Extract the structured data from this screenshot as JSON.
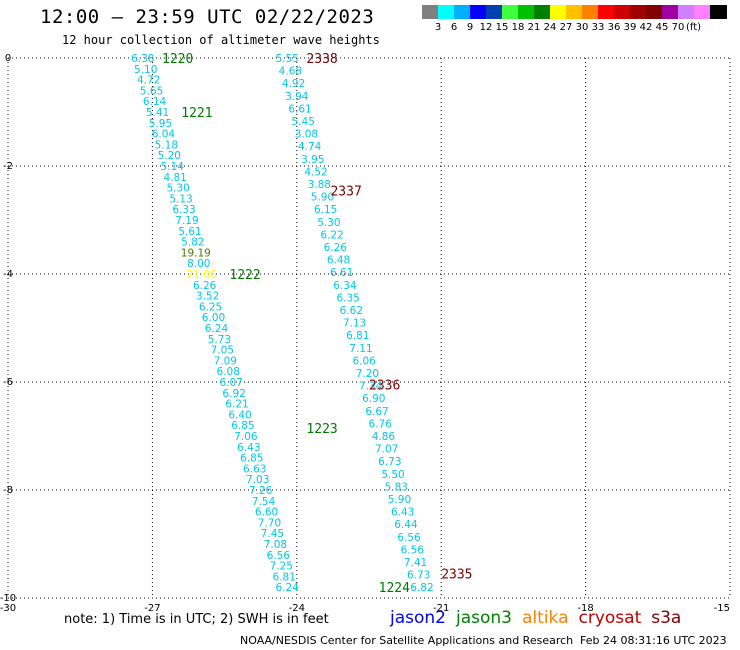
{
  "header": {
    "title": "12:00 — 23:59 UTC 02/22/2023",
    "subtitle": "12 hour collection of altimeter wave heights"
  },
  "legend": {
    "colors": [
      "#808080",
      "#00ffff",
      "#00b0ff",
      "#0000ff",
      "#0040b0",
      "#40ff40",
      "#00c000",
      "#008000",
      "#ffff00",
      "#ffc000",
      "#ff8000",
      "#ff0000",
      "#d00000",
      "#a00000",
      "#800000",
      "#a000a0",
      "#d080ff",
      "#ff80ff",
      "#000000"
    ],
    "labels": [
      "3",
      "6",
      "9",
      "12",
      "15",
      "18",
      "21",
      "24",
      "27",
      "30",
      "33",
      "36",
      "39",
      "42",
      "45",
      "70"
    ],
    "unit": "(ft)"
  },
  "map": {
    "lon_range": [
      -30,
      -15
    ],
    "lat_range": [
      -10,
      0
    ],
    "lon_ticks": [
      "-30",
      "-27",
      "-24",
      "-21",
      "-18",
      "-15"
    ],
    "lat_ticks": [
      "0",
      "-2",
      "-4",
      "-6",
      "-8",
      "-10"
    ],
    "label_colors": {
      "cyan": "#00c8e8",
      "yellow": "#ffff00",
      "green_dark": "#507800",
      "green": "#007800",
      "maroon": "#780000"
    },
    "tracks": [
      {
        "name": "track-a",
        "values": [
          "6.38",
          "5.10",
          "4.72",
          "5.65",
          "6.14",
          "5.41",
          "5.95",
          "6.04",
          "5.18",
          "5.20",
          "5.14",
          "4.81",
          "5.30",
          "5.13",
          "6.33",
          "7.19",
          "5.61",
          "5.82",
          "19.19",
          "8.00",
          "21.06",
          "6.26",
          "3.52",
          "6.25",
          "6.00",
          "6.24",
          "5.73",
          "7.05",
          "7.09",
          "6.08",
          "6.07",
          "6.92",
          "6.21",
          "6.40",
          "6.85",
          "7.06",
          "6.43",
          "6.85",
          "6.63",
          "7.03",
          "7.26",
          "7.54",
          "6.60",
          "7.70",
          "7.45",
          "7.08",
          "6.56",
          "7.25",
          "6.81",
          "6.24"
        ],
        "colors": {
          "18": "green_dark",
          "20": "yellow"
        },
        "lat_start": 0,
        "lat_end": -9.8,
        "lon_start": -27.2,
        "lon_end": -24.2
      },
      {
        "name": "track-b",
        "values": [
          "5.55",
          "4.68",
          "4.92",
          "3.94",
          "6.61",
          "5.45",
          "3.08",
          "4.74",
          "3.95",
          "4.52",
          "3.88",
          "5.90",
          "6.15",
          "5.30",
          "6.22",
          "6.26",
          "6.48",
          "6.61",
          "6.34",
          "6.35",
          "6.62",
          "7.13",
          "6.81",
          "7.11",
          "6.06",
          "7.20",
          "7.34",
          "6.90",
          "6.67",
          "6.76",
          "4.86",
          "7.07",
          "6.73",
          "5.50",
          "5.83",
          "5.90",
          "6.43",
          "6.44",
          "6.56",
          "6.56",
          "7.41",
          "6.73",
          "6.82"
        ],
        "colors": {},
        "lat_start": 0,
        "lat_end": -9.8,
        "lon_start": -24.2,
        "lon_end": -21.4
      }
    ],
    "time_labels": [
      {
        "text": "1220",
        "lat": 0.0,
        "lon": -26.8,
        "color": "green"
      },
      {
        "text": "1221",
        "lat": -1.0,
        "lon": -26.4,
        "color": "green"
      },
      {
        "text": "1222",
        "lat": -4.0,
        "lon": -25.4,
        "color": "green"
      },
      {
        "text": "1223",
        "lat": -6.85,
        "lon": -23.8,
        "color": "green"
      },
      {
        "text": "1224",
        "lat": -9.8,
        "lon": -22.3,
        "color": "green"
      },
      {
        "text": "2338",
        "lat": 0.0,
        "lon": -23.8,
        "color": "maroon"
      },
      {
        "text": "2337",
        "lat": -2.45,
        "lon": -23.3,
        "color": "maroon"
      },
      {
        "text": "2336",
        "lat": -6.05,
        "lon": -22.5,
        "color": "maroon"
      },
      {
        "text": "2335",
        "lat": -9.55,
        "lon": -21.0,
        "color": "maroon"
      }
    ]
  },
  "footer": {
    "note": "note: 1) Time is in UTC; 2) SWH is in feet",
    "satellites": [
      {
        "name": "jason2",
        "color": "#0000ff"
      },
      {
        "name": "jason3",
        "color": "#008000"
      },
      {
        "name": "altika",
        "color": "#ff8000"
      },
      {
        "name": "cryosat",
        "color": "#c00000"
      },
      {
        "name": "s3a",
        "color": "#800000"
      }
    ],
    "credit": "NOAA/NESDIS Center for Satellite Applications and Research",
    "timestamp": "Feb 24 08:31:16 UTC 2023"
  }
}
